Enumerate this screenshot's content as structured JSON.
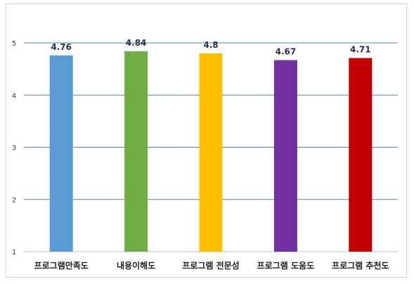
{
  "chart_data": {
    "type": "bar",
    "categories": [
      "프로그램만족도",
      "내용이해도",
      "프로그램 전문성",
      "프로그램 도움도",
      "프로그램 추천도"
    ],
    "values": [
      4.76,
      4.84,
      4.8,
      4.67,
      4.71
    ],
    "value_labels": [
      "4.76",
      "4.84",
      "4.8",
      "4.67",
      "4.71"
    ],
    "colors": [
      "#5b9bd5",
      "#70ad47",
      "#ffc000",
      "#7030a0",
      "#c00000"
    ],
    "yticks": [
      "1",
      "2",
      "3",
      "4",
      "5"
    ],
    "ylim": [
      1,
      5
    ],
    "grid": true,
    "title": "",
    "xlabel": "",
    "ylabel": ""
  }
}
